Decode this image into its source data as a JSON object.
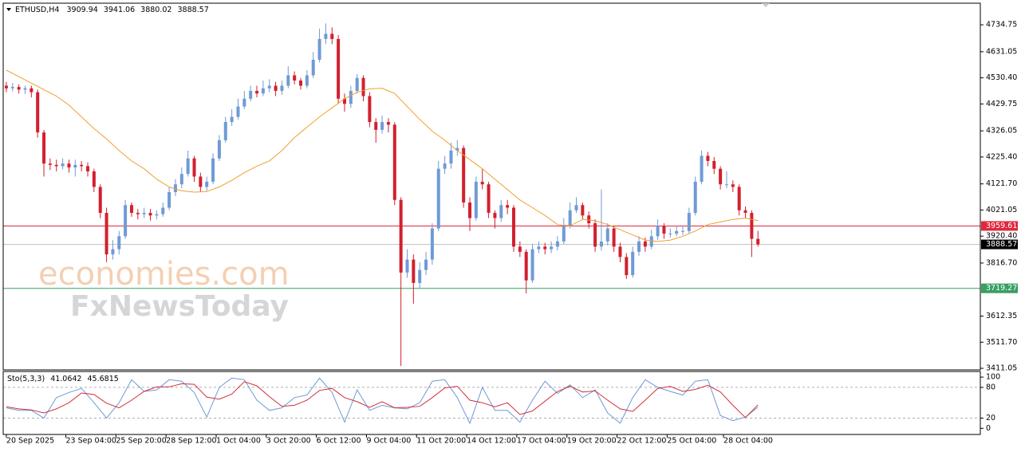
{
  "chart_data": {
    "type": "candlestick",
    "title": "ETHUSD,H4",
    "x": [
      0,
      2,
      4,
      6,
      8,
      10,
      12,
      14,
      16,
      18,
      20,
      22,
      24,
      26,
      28,
      30,
      32,
      34,
      36,
      38,
      40,
      42,
      44,
      46,
      48,
      50,
      52,
      54,
      56,
      58,
      60,
      62,
      64,
      66,
      68,
      70,
      72,
      74,
      76,
      78,
      80,
      82,
      84,
      86,
      88,
      90,
      92,
      94,
      96,
      98,
      100,
      102,
      104,
      106,
      108,
      110,
      112,
      114,
      116,
      118,
      120,
      122,
      124,
      126,
      128,
      130,
      132,
      134,
      136,
      138,
      140,
      142,
      144,
      146,
      148,
      150,
      152,
      154,
      156,
      158,
      160,
      162,
      164,
      166,
      168,
      170,
      172,
      174,
      176,
      178,
      180,
      182,
      184,
      186,
      188,
      190,
      192,
      194,
      196,
      198,
      200,
      202,
      204,
      206,
      208,
      210,
      212,
      214,
      216,
      218,
      220,
      222,
      224,
      226,
      228,
      230,
      232,
      234,
      236,
      238,
      240
    ],
    "open": [
      4500,
      4490,
      4495,
      4485,
      4490,
      4475,
      4320,
      4200,
      4195,
      4190,
      4200,
      4185,
      4195,
      4190,
      4170,
      4110,
      4010,
      3850,
      3870,
      3920,
      4040,
      4010,
      4005,
      4010,
      4000,
      4005,
      4030,
      4090,
      4120,
      4160,
      4220,
      4150,
      4110,
      4130,
      4220,
      4290,
      4360,
      4380,
      4420,
      4450,
      4480,
      4470,
      4490,
      4500,
      4480,
      4500,
      4540,
      4520,
      4500,
      4540,
      4600,
      4680,
      4700,
      4680,
      4450,
      4430,
      4480,
      4530,
      4460,
      4360,
      4330,
      4360,
      4350,
      4060,
      3780,
      3830,
      3740,
      3790,
      3830,
      3950,
      4180,
      4200,
      4250,
      4260,
      4050,
      3990,
      4130,
      4120,
      4010,
      3990,
      4040,
      4030,
      3880,
      3860,
      3750,
      3870,
      3880,
      3870,
      3880,
      3900,
      3960,
      4020,
      4040,
      4000,
      3970,
      3880,
      3900,
      3950,
      3880,
      3840,
      3770,
      3860,
      3900,
      3880,
      3920,
      3960,
      3930,
      3930,
      3940,
      3940,
      4010,
      4130,
      4230,
      4210,
      4180,
      4120,
      4120,
      4110,
      4020,
      4010,
      3909.94
    ],
    "high": [
      4515,
      4510,
      4505,
      4500,
      4500,
      4485,
      4330,
      4220,
      4215,
      4220,
      4215,
      4215,
      4210,
      4205,
      4180,
      4120,
      4030,
      3905,
      3940,
      4060,
      4050,
      4025,
      4030,
      4025,
      4020,
      4050,
      4110,
      4140,
      4185,
      4250,
      4230,
      4165,
      4150,
      4240,
      4310,
      4380,
      4410,
      4450,
      4480,
      4500,
      4500,
      4520,
      4525,
      4515,
      4520,
      4575,
      4555,
      4530,
      4560,
      4630,
      4720,
      4740,
      4725,
      4695,
      4470,
      4500,
      4545,
      4540,
      4475,
      4375,
      4385,
      4375,
      4360,
      4070,
      3870,
      3850,
      3820,
      3860,
      3970,
      4210,
      4230,
      4280,
      4290,
      4270,
      4070,
      4150,
      4180,
      4130,
      4020,
      4060,
      4060,
      4040,
      3900,
      3870,
      3890,
      3900,
      3895,
      3900,
      3920,
      3990,
      4050,
      4070,
      4050,
      4015,
      3985,
      4100,
      3970,
      3960,
      3895,
      3855,
      3880,
      3920,
      3915,
      3945,
      3985,
      3970,
      3950,
      3960,
      3960,
      4030,
      4150,
      4250,
      4245,
      4225,
      4190,
      4170,
      4135,
      4120,
      4035,
      4020,
      3941.06
    ],
    "low": [
      4475,
      4478,
      4470,
      4468,
      4455,
      4300,
      4150,
      4175,
      4170,
      4178,
      4165,
      4150,
      4170,
      4150,
      4090,
      3990,
      3820,
      3830,
      3850,
      3910,
      3995,
      3985,
      3990,
      3980,
      3985,
      3995,
      4020,
      4075,
      4105,
      4150,
      4130,
      4090,
      4095,
      4120,
      4210,
      4280,
      4345,
      4370,
      4410,
      4440,
      4455,
      4460,
      4475,
      4460,
      4465,
      4490,
      4505,
      4485,
      4490,
      4530,
      4590,
      4660,
      4660,
      4430,
      4400,
      4415,
      4470,
      4440,
      4340,
      4280,
      4315,
      4320,
      4040,
      3420,
      3760,
      3660,
      3720,
      3770,
      3810,
      3940,
      4160,
      4180,
      4230,
      4030,
      3940,
      3980,
      4100,
      3990,
      3950,
      3975,
      4005,
      3860,
      3840,
      3700,
      3740,
      3855,
      3850,
      3855,
      3865,
      3890,
      3950,
      4010,
      3985,
      3950,
      3860,
      3865,
      3885,
      3860,
      3820,
      3755,
      3760,
      3845,
      3860,
      3870,
      3905,
      3910,
      3915,
      3920,
      3925,
      3930,
      4000,
      4120,
      4190,
      4160,
      4100,
      4105,
      4090,
      4000,
      3990,
      3840,
      3880.02
    ],
    "close": [
      4490,
      4495,
      4485,
      4490,
      4475,
      4320,
      4200,
      4195,
      4190,
      4200,
      4185,
      4195,
      4190,
      4170,
      4110,
      4010,
      3850,
      3870,
      3920,
      4040,
      4010,
      4005,
      4010,
      4000,
      4005,
      4030,
      4090,
      4120,
      4160,
      4220,
      4150,
      4110,
      4130,
      4220,
      4290,
      4360,
      4380,
      4420,
      4450,
      4480,
      4470,
      4490,
      4500,
      4480,
      4500,
      4540,
      4520,
      4500,
      4540,
      4600,
      4680,
      4700,
      4680,
      4450,
      4430,
      4480,
      4530,
      4460,
      4360,
      4330,
      4360,
      4350,
      4060,
      3780,
      3830,
      3740,
      3790,
      3830,
      3950,
      4180,
      4200,
      4250,
      4260,
      4050,
      3990,
      4130,
      4120,
      4010,
      3990,
      4040,
      4030,
      3880,
      3860,
      3750,
      3870,
      3880,
      3870,
      3880,
      3900,
      3960,
      4020,
      4040,
      4000,
      3970,
      3880,
      3900,
      3950,
      3880,
      3840,
      3770,
      3860,
      3900,
      3880,
      3920,
      3960,
      3930,
      3930,
      3940,
      3940,
      4010,
      4130,
      4230,
      4210,
      4180,
      4120,
      4120,
      4110,
      4020,
      4010,
      3910,
      3888.57
    ],
    "up_color": "#6f9ad6",
    "down_color": "#d2202e",
    "xlim": [
      -1,
      311
    ],
    "xticks": [
      {
        "value": 0,
        "label": "20 Sep 2025"
      },
      {
        "value": 19,
        "label": "23 Sep 04:00"
      },
      {
        "value": 35,
        "label": "25 Sep 20:00"
      },
      {
        "value": 51,
        "label": "28 Sep 12:00"
      },
      {
        "value": 67,
        "label": "1 Oct 04:00"
      },
      {
        "value": 83,
        "label": "3 Oct 20:00"
      },
      {
        "value": 99,
        "label": "6 Oct 12:00"
      },
      {
        "value": 115,
        "label": "9 Oct 04:00"
      },
      {
        "value": 131,
        "label": "11 Oct 20:00"
      },
      {
        "value": 147,
        "label": "14 Oct 12:00"
      },
      {
        "value": 163,
        "label": "17 Oct 04:00"
      },
      {
        "value": 179,
        "label": "19 Oct 20:00"
      },
      {
        "value": 195,
        "label": "22 Oct 12:00"
      },
      {
        "value": 211,
        "label": "25 Oct 04:00"
      },
      {
        "value": 229,
        "label": "28 Oct 04:00"
      }
    ],
    "ylim": [
      3405,
      4818
    ],
    "yticks": [
      4734.75,
      4631.05,
      {
        "value": 4530.4,
        "label": "4530.40"
      },
      4429.75,
      4326.05,
      {
        "value": 4225.4,
        "label": "4225.40"
      },
      {
        "value": 4121.7,
        "label": "4121.70"
      },
      4021.05,
      {
        "value": 3920.4,
        "label": "3920.40"
      },
      {
        "value": 3816.7,
        "label": "3816.70"
      },
      3612.35,
      {
        "value": 3511.7,
        "label": "3511.70"
      },
      3411.05
    ],
    "levels": [
      {
        "value": 3959.61,
        "color": "#e0283c"
      },
      {
        "value": 3888.57,
        "color": "#c0c0c0",
        "label_color": "#000000"
      },
      {
        "value": 3719.27,
        "color": "#3a9f62"
      }
    ],
    "moving_average": {
      "color": "#f0a030",
      "x": [
        0,
        4,
        8,
        12,
        16,
        20,
        24,
        28,
        32,
        36,
        40,
        44,
        48,
        52,
        56,
        60,
        64,
        68,
        72,
        76,
        80,
        84,
        88,
        92,
        96,
        100,
        104,
        108,
        112,
        116,
        120,
        124,
        128,
        132,
        136,
        140,
        144,
        148,
        152,
        156,
        160,
        164,
        168,
        172,
        176,
        180,
        184,
        188,
        192,
        196,
        200,
        204,
        208,
        212,
        216,
        220,
        224,
        228,
        232,
        236,
        240
      ],
      "values": [
        4560,
        4535,
        4510,
        4485,
        4460,
        4425,
        4380,
        4335,
        4295,
        4250,
        4210,
        4180,
        4140,
        4110,
        4095,
        4090,
        4092,
        4110,
        4135,
        4165,
        4190,
        4210,
        4250,
        4300,
        4340,
        4380,
        4415,
        4450,
        4475,
        4488,
        4490,
        4470,
        4420,
        4370,
        4325,
        4290,
        4250,
        4215,
        4180,
        4140,
        4100,
        4060,
        4030,
        4000,
        3965,
        3960,
        3985,
        3980,
        3965,
        3945,
        3925,
        3905,
        3900,
        3905,
        3920,
        3940,
        3965,
        3975,
        3985,
        3990,
        3980
      ]
    },
    "watermarks": [
      "economies.com",
      "FxNewsToday"
    ],
    "stochastic": {
      "label": "Sto(5,3,3)",
      "x": [
        0,
        4,
        8,
        12,
        16,
        20,
        24,
        28,
        32,
        36,
        40,
        44,
        48,
        52,
        56,
        60,
        64,
        68,
        72,
        76,
        80,
        84,
        88,
        92,
        96,
        100,
        104,
        108,
        112,
        116,
        120,
        124,
        128,
        132,
        136,
        140,
        144,
        148,
        152,
        156,
        160,
        164,
        168,
        172,
        176,
        180,
        184,
        188,
        192,
        196,
        200,
        204,
        208,
        212,
        216,
        220,
        224,
        228,
        232,
        236,
        240
      ],
      "ylim": [
        -12,
        111
      ],
      "yticks": [
        100,
        80,
        20,
        0
      ],
      "levels": [
        80,
        20
      ],
      "k": {
        "color": "#6f9ad6",
        "values": [
          40,
          35,
          35,
          20,
          60,
          70,
          78,
          50,
          20,
          50,
          95,
          72,
          75,
          95,
          92,
          70,
          22,
          80,
          98,
          95,
          55,
          35,
          40,
          60,
          65,
          98,
          70,
          12,
          75,
          35,
          45,
          40,
          38,
          50,
          92,
          95,
          60,
          10,
          80,
          35,
          35,
          12,
          55,
          92,
          68,
          85,
          60,
          75,
          30,
          10,
          60,
          95,
          80,
          72,
          65,
          92,
          95,
          25,
          15,
          22,
          41.0642
        ]
      },
      "d": {
        "color": "#d0303a",
        "values": [
          42,
          38,
          36,
          30,
          38,
          50,
          69,
          66,
          49,
          40,
          55,
          72,
          81,
          81,
          87,
          86,
          61,
          57,
          67,
          91,
          83,
          62,
          43,
          45,
          55,
          74,
          78,
          60,
          52,
          41,
          52,
          40,
          41,
          43,
          60,
          79,
          82,
          55,
          50,
          42,
          50,
          27,
          34,
          53,
          72,
          82,
          71,
          73,
          55,
          38,
          33,
          55,
          78,
          82,
          72,
          76,
          84,
          71,
          45,
          21,
          45.6815
        ]
      }
    }
  }
}
